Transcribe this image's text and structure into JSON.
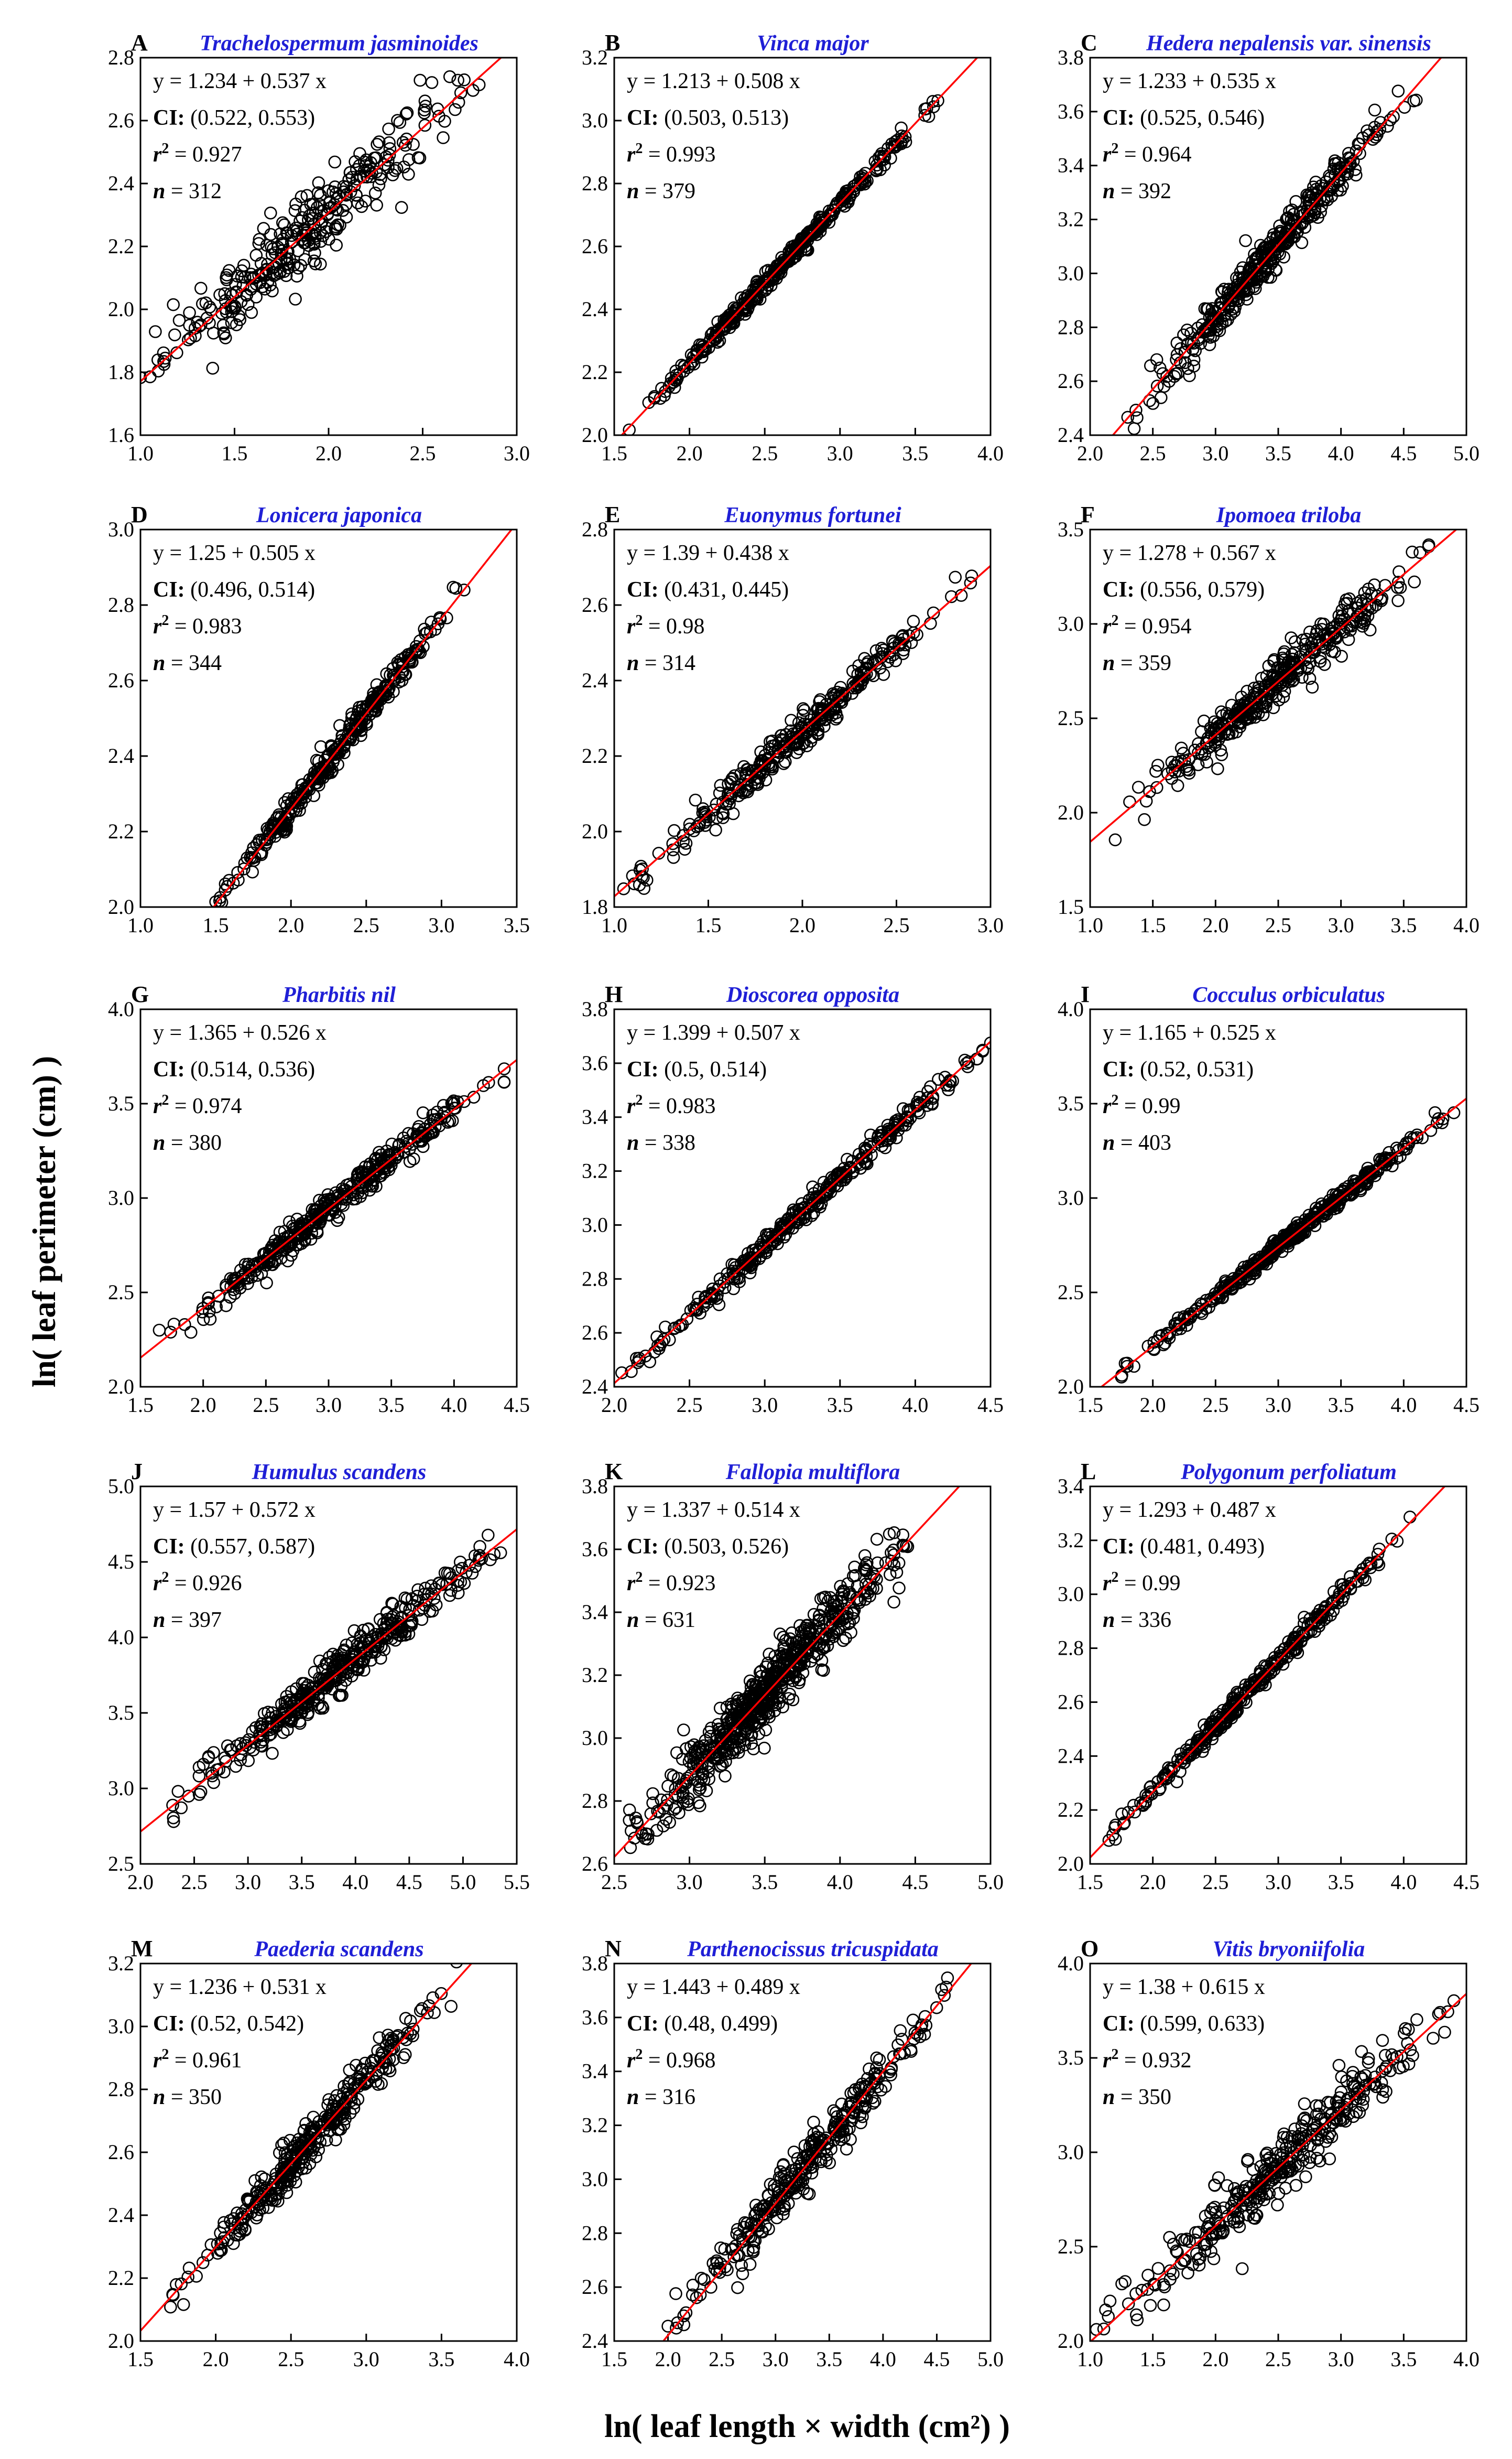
{
  "chart_data": {
    "type": "scatter",
    "xlabel": "ln( leaf length × width (cm²) )",
    "ylabel": "ln( leaf perimeter (cm) )",
    "colors": {
      "points": "#000000",
      "fit_line": "#ff0000",
      "species_title": "#1f1fd6"
    },
    "panels": [
      {
        "letter": "A",
        "species": "Trachelospermum jasminoides",
        "equation": "y = 1.234 + 0.537 x",
        "ci": "(0.522, 0.553)",
        "r2": "0.927",
        "n": "312",
        "intercept": 1.234,
        "slope": 0.537,
        "xlim": [
          1.0,
          3.0
        ],
        "ylim": [
          1.6,
          2.8
        ],
        "xticks": [
          "1.0",
          "1.5",
          "2.0",
          "2.5",
          "3.0"
        ],
        "yticks": [
          "1.6",
          "1.8",
          "2.0",
          "2.2",
          "2.4",
          "2.6",
          "2.8"
        ],
        "x_range": [
          1.0,
          2.8
        ],
        "scatter_sd": 0.055,
        "n_points": 312
      },
      {
        "letter": "B",
        "species": "Vinca major",
        "equation": "y = 1.213 + 0.508 x",
        "ci": "(0.503, 0.513)",
        "r2": "0.993",
        "n": "379",
        "intercept": 1.213,
        "slope": 0.508,
        "xlim": [
          1.5,
          4.0
        ],
        "ylim": [
          2.0,
          3.2
        ],
        "xticks": [
          "1.5",
          "2.0",
          "2.5",
          "3.0",
          "3.5",
          "4.0"
        ],
        "yticks": [
          "2.0",
          "2.2",
          "2.4",
          "2.6",
          "2.8",
          "3.0",
          "3.2"
        ],
        "x_range": [
          1.6,
          3.65
        ],
        "scatter_sd": 0.013,
        "n_points": 379
      },
      {
        "letter": "C",
        "species": "Hedera nepalensis var. sinensis",
        "equation": "y = 1.233 + 0.535 x",
        "ci": "(0.525, 0.546)",
        "r2": "0.964",
        "n": "392",
        "intercept": 1.233,
        "slope": 0.535,
        "xlim": [
          2.0,
          5.0
        ],
        "ylim": [
          2.4,
          3.8
        ],
        "xticks": [
          "2.0",
          "2.5",
          "3.0",
          "3.5",
          "4.0",
          "4.5",
          "5.0"
        ],
        "yticks": [
          "2.4",
          "2.6",
          "2.8",
          "3.0",
          "3.2",
          "3.4",
          "3.6",
          "3.8"
        ],
        "x_range": [
          2.3,
          4.6
        ],
        "scatter_sd": 0.035,
        "n_points": 392
      },
      {
        "letter": "D",
        "species": "Lonicera japonica",
        "equation": "y = 1.25 + 0.505 x",
        "ci": "(0.496, 0.514)",
        "r2": "0.983",
        "n": "344",
        "intercept": 1.25,
        "slope": 0.505,
        "xlim": [
          1.0,
          3.5
        ],
        "ylim": [
          2.0,
          3.0
        ],
        "xticks": [
          "1.0",
          "1.5",
          "2.0",
          "2.5",
          "3.0",
          "3.5"
        ],
        "yticks": [
          "2.0",
          "2.2",
          "2.4",
          "2.6",
          "2.8",
          "3.0"
        ],
        "x_range": [
          1.5,
          3.15
        ],
        "scatter_sd": 0.017,
        "n_points": 344
      },
      {
        "letter": "E",
        "species": "Euonymus fortunei",
        "equation": "y = 1.39 + 0.438 x",
        "ci": "(0.431, 0.445)",
        "r2": "0.98",
        "n": "314",
        "intercept": 1.39,
        "slope": 0.438,
        "xlim": [
          1.0,
          3.0
        ],
        "ylim": [
          1.8,
          2.8
        ],
        "xticks": [
          "1.0",
          "1.5",
          "2.0",
          "2.5",
          "3.0"
        ],
        "yticks": [
          "1.8",
          "2.0",
          "2.2",
          "2.4",
          "2.6",
          "2.8"
        ],
        "x_range": [
          1.05,
          2.9
        ],
        "scatter_sd": 0.022,
        "n_points": 314
      },
      {
        "letter": "F",
        "species": "Ipomoea triloba",
        "equation": "y = 1.278 + 0.567 x",
        "ci": "(0.556, 0.579)",
        "r2": "0.954",
        "n": "359",
        "intercept": 1.278,
        "slope": 0.567,
        "xlim": [
          1.0,
          4.0
        ],
        "ylim": [
          1.5,
          3.5
        ],
        "xticks": [
          "1.0",
          "1.5",
          "2.0",
          "2.5",
          "3.0",
          "3.5",
          "4.0"
        ],
        "yticks": [
          "1.5",
          "2.0",
          "2.5",
          "3.0",
          "3.5"
        ],
        "x_range": [
          1.2,
          3.7
        ],
        "scatter_sd": 0.06,
        "n_points": 359
      },
      {
        "letter": "G",
        "species": "Pharbitis nil",
        "equation": "y = 1.365 + 0.526 x",
        "ci": "(0.514, 0.536)",
        "r2": "0.974",
        "n": "380",
        "intercept": 1.365,
        "slope": 0.526,
        "xlim": [
          1.5,
          4.5
        ],
        "ylim": [
          2.0,
          4.0
        ],
        "xticks": [
          "1.5",
          "2.0",
          "2.5",
          "3.0",
          "3.5",
          "4.0",
          "4.5"
        ],
        "yticks": [
          "2.0",
          "2.5",
          "3.0",
          "3.5",
          "4.0"
        ],
        "x_range": [
          1.65,
          4.4
        ],
        "scatter_sd": 0.04,
        "n_points": 380
      },
      {
        "letter": "H",
        "species": "Dioscorea opposita",
        "equation": "y = 1.399 + 0.507 x",
        "ci": "(0.5, 0.514)",
        "r2": "0.983",
        "n": "338",
        "intercept": 1.399,
        "slope": 0.507,
        "xlim": [
          2.0,
          4.5
        ],
        "ylim": [
          2.4,
          3.8
        ],
        "xticks": [
          "2.0",
          "2.5",
          "3.0",
          "3.5",
          "4.0",
          "4.5"
        ],
        "yticks": [
          "2.4",
          "2.6",
          "2.8",
          "3.0",
          "3.2",
          "3.4",
          "3.6",
          "3.8"
        ],
        "x_range": [
          2.05,
          4.5
        ],
        "scatter_sd": 0.02,
        "n_points": 338
      },
      {
        "letter": "I",
        "species": "Cocculus orbiculatus",
        "equation": "y = 1.165 + 0.525 x",
        "ci": "(0.52, 0.531)",
        "r2": "0.99",
        "n": "403",
        "intercept": 1.165,
        "slope": 0.525,
        "xlim": [
          1.5,
          4.5
        ],
        "ylim": [
          2.0,
          4.0
        ],
        "xticks": [
          "1.5",
          "2.0",
          "2.5",
          "3.0",
          "3.5",
          "4.0",
          "4.5"
        ],
        "yticks": [
          "2.0",
          "2.5",
          "3.0",
          "3.5",
          "4.0"
        ],
        "x_range": [
          1.75,
          4.4
        ],
        "scatter_sd": 0.02,
        "n_points": 403
      },
      {
        "letter": "J",
        "species": "Humulus scandens",
        "equation": "y = 1.57 + 0.572 x",
        "ci": "(0.557, 0.587)",
        "r2": "0.926",
        "n": "397",
        "intercept": 1.57,
        "slope": 0.572,
        "xlim": [
          2.0,
          5.5
        ],
        "ylim": [
          2.5,
          5.0
        ],
        "xticks": [
          "2.0",
          "2.5",
          "3.0",
          "3.5",
          "4.0",
          "4.5",
          "5.0",
          "5.5"
        ],
        "yticks": [
          "2.5",
          "3.0",
          "3.5",
          "4.0",
          "4.5",
          "5.0"
        ],
        "x_range": [
          2.3,
          5.35
        ],
        "scatter_sd": 0.07,
        "n_points": 397
      },
      {
        "letter": "K",
        "species": "Fallopia multiflora",
        "equation": "y = 1.337 + 0.514 x",
        "ci": "(0.503, 0.526)",
        "r2": "0.923",
        "n": "631",
        "intercept": 1.337,
        "slope": 0.514,
        "xlim": [
          2.5,
          5.0
        ],
        "ylim": [
          2.6,
          3.8
        ],
        "xticks": [
          "2.5",
          "3.0",
          "3.5",
          "4.0",
          "4.5",
          "5.0"
        ],
        "yticks": [
          "2.6",
          "2.8",
          "3.0",
          "3.2",
          "3.4",
          "3.6",
          "3.8"
        ],
        "x_range": [
          2.6,
          4.45
        ],
        "scatter_sd": 0.05,
        "n_points": 631
      },
      {
        "letter": "L",
        "species": "Polygonum perfoliatum",
        "equation": "y = 1.293 + 0.487 x",
        "ci": "(0.481, 0.493)",
        "r2": "0.99",
        "n": "336",
        "intercept": 1.293,
        "slope": 0.487,
        "xlim": [
          1.5,
          4.5
        ],
        "ylim": [
          2.0,
          3.4
        ],
        "xticks": [
          "1.5",
          "2.0",
          "2.5",
          "3.0",
          "3.5",
          "4.0",
          "4.5"
        ],
        "yticks": [
          "2.0",
          "2.2",
          "2.4",
          "2.6",
          "2.8",
          "3.0",
          "3.2",
          "3.4"
        ],
        "x_range": [
          1.65,
          4.05
        ],
        "scatter_sd": 0.018,
        "n_points": 336
      },
      {
        "letter": "M",
        "species": "Paederia scandens",
        "equation": "y = 1.236 + 0.531 x",
        "ci": "(0.52, 0.542)",
        "r2": "0.961",
        "n": "350",
        "intercept": 1.236,
        "slope": 0.531,
        "xlim": [
          1.5,
          4.0
        ],
        "ylim": [
          2.0,
          3.2
        ],
        "xticks": [
          "1.5",
          "2.0",
          "2.5",
          "3.0",
          "3.5",
          "4.0"
        ],
        "yticks": [
          "2.0",
          "2.2",
          "2.4",
          "2.6",
          "2.8",
          "3.0",
          "3.2"
        ],
        "x_range": [
          1.7,
          3.6
        ],
        "scatter_sd": 0.035,
        "n_points": 350
      },
      {
        "letter": "N",
        "species": "Parthenocissus tricuspidata",
        "equation": "y = 1.443 + 0.489 x",
        "ci": "(0.48, 0.499)",
        "r2": "0.968",
        "n": "316",
        "intercept": 1.443,
        "slope": 0.489,
        "xlim": [
          1.5,
          5.0
        ],
        "ylim": [
          2.4,
          3.8
        ],
        "xticks": [
          "1.5",
          "2.0",
          "2.5",
          "3.0",
          "3.5",
          "4.0",
          "4.5",
          "5.0"
        ],
        "yticks": [
          "2.4",
          "2.6",
          "2.8",
          "3.0",
          "3.2",
          "3.4",
          "3.6",
          "3.8"
        ],
        "x_range": [
          2.0,
          4.6
        ],
        "scatter_sd": 0.045,
        "n_points": 316
      },
      {
        "letter": "O",
        "species": "Vitis bryoniifolia",
        "equation": "y = 1.38 + 0.615 x",
        "ci": "(0.599, 0.633)",
        "r2": "0.932",
        "n": "350",
        "intercept": 1.38,
        "slope": 0.615,
        "xlim": [
          1.0,
          4.0
        ],
        "ylim": [
          2.0,
          4.0
        ],
        "xticks": [
          "1.0",
          "1.5",
          "2.0",
          "2.5",
          "3.0",
          "3.5",
          "4.0"
        ],
        "yticks": [
          "2.0",
          "2.5",
          "3.0",
          "3.5",
          "4.0"
        ],
        "x_range": [
          1.05,
          3.9
        ],
        "scatter_sd": 0.085,
        "n_points": 350
      }
    ]
  }
}
